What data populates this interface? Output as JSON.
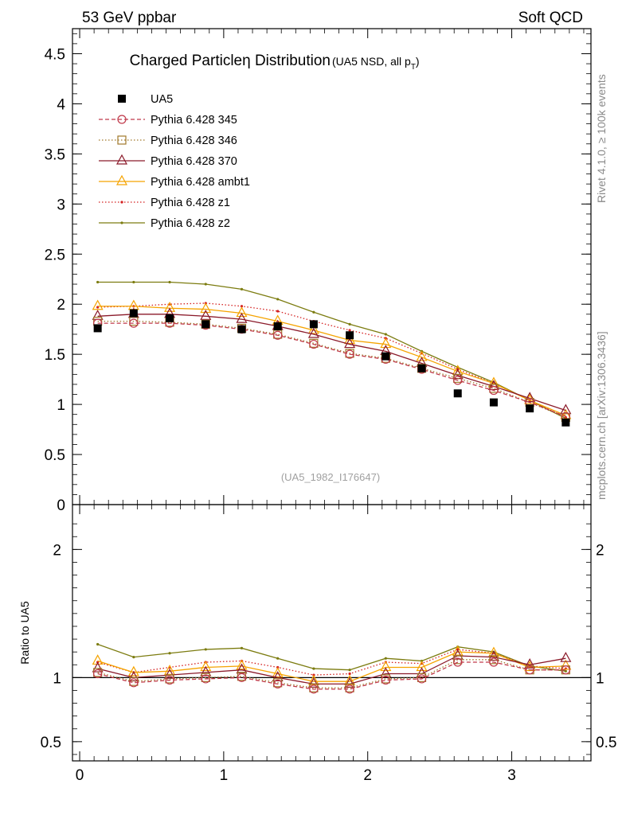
{
  "header": {
    "left": "53 GeV ppbar",
    "right": "Soft QCD"
  },
  "side": {
    "top": "Rivet 4.1.0, ≥ 100k events",
    "bottom": "mcplots.cern.ch [arXiv:1306.3436]"
  },
  "colors": {
    "UA5": "#000000",
    "p345": "#c0394a",
    "p346": "#a0782a",
    "p370": "#8b1a2a",
    "ambt1": "#f5a300",
    "z1": "#d42020",
    "z2": "#7c7c10"
  },
  "chart_data": [
    {
      "type": "scatter",
      "panel": "main",
      "title": "Charged Particleη Distribution",
      "title_suffix": "(UA5 NSD, all p",
      "title_suffix_sub": "T",
      "title_suffix_end": ")",
      "watermark": "(UA5_1982_I176647)",
      "xlabel": "",
      "ylabel": "",
      "xlim": [
        -0.05,
        3.55
      ],
      "ylim": [
        0,
        4.75
      ],
      "xticks": [
        0,
        1,
        2,
        3
      ],
      "yticks": [
        0,
        0.5,
        1,
        1.5,
        2,
        2.5,
        3,
        3.5,
        4,
        4.5
      ],
      "ytick_labels": [
        "0",
        "0.5",
        "1",
        "1.5",
        "2",
        "2.5",
        "3",
        "3.5",
        "4",
        "4.5"
      ],
      "x": [
        0.125,
        0.375,
        0.625,
        0.875,
        1.125,
        1.375,
        1.625,
        1.875,
        2.125,
        2.375,
        2.625,
        2.875,
        3.125,
        3.375
      ],
      "legend_position": "top-left",
      "series": [
        {
          "name": "UA5",
          "style": "data",
          "marker": "square",
          "values": [
            1.76,
            1.91,
            1.86,
            1.8,
            1.75,
            1.78,
            1.8,
            1.69,
            1.48,
            1.36,
            1.11,
            1.02,
            0.96,
            0.82
          ]
        },
        {
          "name": "Pythia 6.428 345",
          "style": "dashed",
          "marker": "circle",
          "values": [
            1.81,
            1.81,
            1.81,
            1.79,
            1.75,
            1.69,
            1.6,
            1.5,
            1.45,
            1.35,
            1.24,
            1.14,
            1.02,
            0.88
          ]
        },
        {
          "name": "Pythia 6.428 346",
          "style": "dotted",
          "marker": "square-open",
          "values": [
            1.83,
            1.83,
            1.82,
            1.8,
            1.76,
            1.7,
            1.61,
            1.51,
            1.46,
            1.36,
            1.26,
            1.16,
            1.02,
            0.87
          ]
        },
        {
          "name": "Pythia 6.428 370",
          "style": "solid",
          "marker": "triangle",
          "values": [
            1.88,
            1.9,
            1.9,
            1.88,
            1.85,
            1.78,
            1.7,
            1.6,
            1.53,
            1.41,
            1.29,
            1.18,
            1.06,
            0.94
          ]
        },
        {
          "name": "Pythia 6.428 ambt1",
          "style": "solid",
          "marker": "triangle",
          "values": [
            1.98,
            1.98,
            1.96,
            1.95,
            1.91,
            1.83,
            1.74,
            1.64,
            1.6,
            1.47,
            1.33,
            1.21,
            1.04,
            0.89
          ]
        },
        {
          "name": "Pythia 6.428 z1",
          "style": "dotted",
          "marker": "dot",
          "values": [
            1.97,
            1.98,
            2.0,
            2.01,
            1.98,
            1.93,
            1.83,
            1.74,
            1.66,
            1.51,
            1.35,
            1.21,
            1.04,
            0.87
          ]
        },
        {
          "name": "Pythia 6.428 z2",
          "style": "solid",
          "marker": "dot",
          "values": [
            2.22,
            2.22,
            2.22,
            2.2,
            2.15,
            2.05,
            1.92,
            1.8,
            1.7,
            1.53,
            1.37,
            1.22,
            1.04,
            0.86
          ]
        }
      ]
    },
    {
      "type": "line",
      "panel": "ratio",
      "ylabel": "Ratio to UA5",
      "xlim": [
        -0.05,
        3.55
      ],
      "ylim": [
        0.35,
        2.35
      ],
      "xticks": [
        0,
        1,
        2,
        3
      ],
      "xtick_labels": [
        "0",
        "1",
        "2",
        "3"
      ],
      "yticks": [
        0.5,
        1,
        2
      ],
      "ytick_labels": [
        "0.5",
        "1",
        "2"
      ],
      "x": [
        0.125,
        0.375,
        0.625,
        0.875,
        1.125,
        1.375,
        1.625,
        1.875,
        2.125,
        2.375,
        2.625,
        2.875,
        3.125,
        3.375
      ],
      "series": [
        {
          "name": "Pythia 6.428 345",
          "style": "dashed",
          "marker": "circle",
          "values": [
            1.03,
            0.96,
            0.98,
            0.99,
            1.0,
            0.95,
            0.91,
            0.91,
            0.98,
            0.99,
            1.12,
            1.12,
            1.06,
            1.06
          ]
        },
        {
          "name": "Pythia 6.428 346",
          "style": "dotted",
          "marker": "square-open",
          "values": [
            1.04,
            0.97,
            0.99,
            1.0,
            1.01,
            0.96,
            0.92,
            0.92,
            0.99,
            1.0,
            1.14,
            1.14,
            1.06,
            1.06
          ]
        },
        {
          "name": "Pythia 6.428 370",
          "style": "solid",
          "marker": "triangle",
          "values": [
            1.07,
            1.0,
            1.02,
            1.04,
            1.06,
            1.0,
            0.95,
            0.95,
            1.03,
            1.03,
            1.17,
            1.16,
            1.1,
            1.15
          ]
        },
        {
          "name": "Pythia 6.428 ambt1",
          "style": "solid",
          "marker": "triangle",
          "values": [
            1.13,
            1.04,
            1.05,
            1.08,
            1.09,
            1.03,
            0.97,
            0.97,
            1.08,
            1.08,
            1.2,
            1.19,
            1.08,
            1.09
          ]
        },
        {
          "name": "Pythia 6.428 z1",
          "style": "dotted",
          "marker": "dot",
          "values": [
            1.12,
            1.04,
            1.08,
            1.12,
            1.13,
            1.08,
            1.02,
            1.03,
            1.12,
            1.11,
            1.22,
            1.19,
            1.09,
            1.07
          ]
        },
        {
          "name": "Pythia 6.428 z2",
          "style": "solid",
          "marker": "dot",
          "values": [
            1.26,
            1.16,
            1.19,
            1.22,
            1.23,
            1.15,
            1.07,
            1.06,
            1.15,
            1.13,
            1.24,
            1.2,
            1.09,
            1.05
          ]
        }
      ]
    }
  ]
}
